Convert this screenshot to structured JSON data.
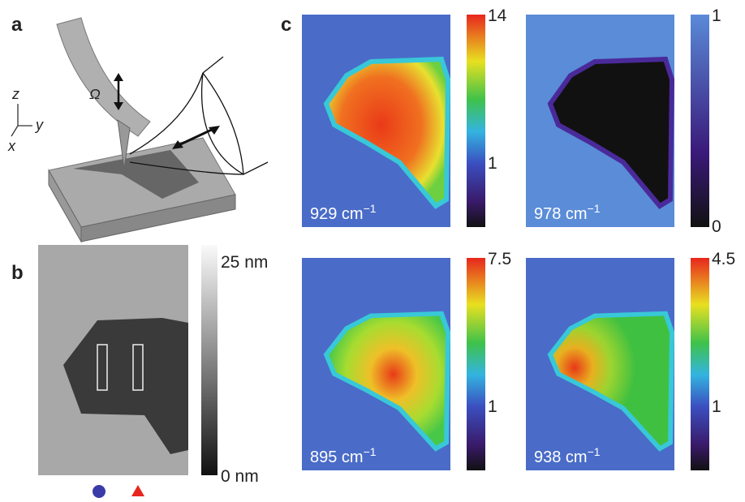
{
  "panels": {
    "a": {
      "label": "a",
      "omega": "Ω",
      "axes": [
        "z",
        "y",
        "x"
      ]
    },
    "b": {
      "label": "b",
      "scale_top": "25 nm",
      "scale_bottom": "0 nm"
    },
    "c": {
      "label": "c",
      "maps": [
        {
          "wavenumber": "929 cm",
          "unit_exponent": "−1",
          "scale_top": "14",
          "scale_mid": "1"
        },
        {
          "wavenumber": "978 cm",
          "unit_exponent": "−1",
          "scale_top": "1",
          "scale_bottom": "0"
        },
        {
          "wavenumber": "895 cm",
          "unit_exponent": "−1",
          "scale_top": "7.5",
          "scale_mid": "1"
        },
        {
          "wavenumber": "938 cm",
          "unit_exponent": "−1",
          "scale_top": "4.5",
          "scale_mid": "1"
        }
      ]
    }
  }
}
